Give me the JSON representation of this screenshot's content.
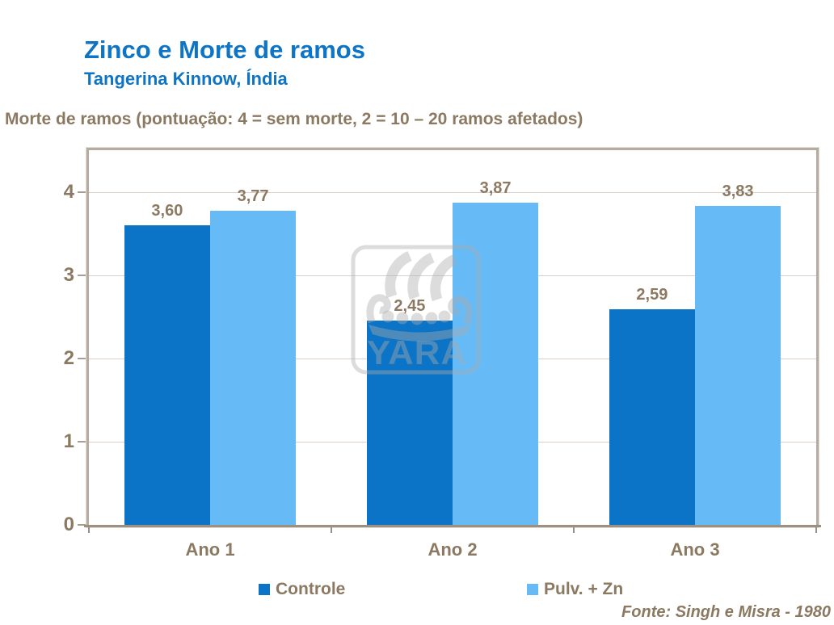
{
  "header": {
    "title": "Zinco e Morte de ramos",
    "subtitle": "Tangerina Kinnow, Índia"
  },
  "chart_data": {
    "type": "bar",
    "title": "Zinco e Morte de ramos",
    "subtitle": "Tangerina Kinnow, Índia",
    "ylabel": "Morte de ramos (pontuação: 4 = sem morte, 2 = 10 – 20 ramos afetados)",
    "xlabel": "",
    "categories": [
      "Ano 1",
      "Ano 2",
      "Ano 3"
    ],
    "series": [
      {
        "name": "Controle",
        "color": "#0B74C6",
        "values": [
          3.6,
          2.45,
          2.59
        ],
        "labels": [
          "3,60",
          "2,45",
          "2,59"
        ]
      },
      {
        "name": "Pulv. + Zn",
        "color": "#66BBF7",
        "values": [
          3.77,
          3.87,
          3.83
        ],
        "labels": [
          "3,77",
          "3,87",
          "3,83"
        ]
      }
    ],
    "ylim": [
      0,
      4.5
    ],
    "yticks": [
      0,
      1,
      2,
      3,
      4
    ],
    "grid": true,
    "legend_position": "bottom"
  },
  "legend": {
    "items": [
      "Controle",
      "Pulv. + Zn"
    ]
  },
  "watermark": {
    "text": "YARA"
  },
  "source": "Fonte: Singh e Misra - 1980",
  "colors": {
    "title_blue": "#0E74C6",
    "series_dark_blue": "#0B74C6",
    "series_light_blue": "#66BBF7",
    "text_brown": "#8B7961"
  }
}
